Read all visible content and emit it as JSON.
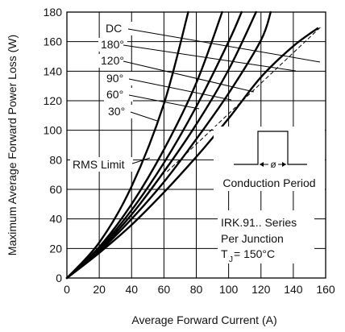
{
  "chart_data": {
    "type": "line",
    "xlabel": "Average Forward Current (A)",
    "ylabel": "Maximum Average Forward Power Loss (W)",
    "xlim": [
      0,
      160
    ],
    "ylim": [
      0,
      180
    ],
    "x_ticks": [
      0,
      20,
      40,
      60,
      80,
      100,
      120,
      140,
      160
    ],
    "y_ticks": [
      0,
      20,
      40,
      60,
      80,
      100,
      120,
      140,
      160,
      180
    ],
    "grid": true,
    "series": [
      {
        "name": "30°",
        "x": [
          0,
          20,
          40,
          60,
          75
        ],
        "y": [
          0,
          24,
          62,
          118,
          180
        ]
      },
      {
        "name": "60°",
        "x": [
          0,
          20,
          40,
          60,
          80,
          96
        ],
        "y": [
          0,
          21,
          50,
          87,
          132,
          180
        ]
      },
      {
        "name": "90°",
        "x": [
          0,
          20,
          40,
          60,
          80,
          100,
          108
        ],
        "y": [
          0,
          20,
          46,
          78,
          116,
          160,
          180
        ]
      },
      {
        "name": "120°",
        "x": [
          0,
          20,
          40,
          60,
          80,
          100,
          117
        ],
        "y": [
          0,
          19,
          43,
          72,
          104,
          141,
          180
        ]
      },
      {
        "name": "180°",
        "x": [
          0,
          20,
          40,
          60,
          80,
          100,
          120,
          126
        ],
        "y": [
          0,
          18,
          40,
          65,
          94,
          125,
          161,
          180
        ]
      },
      {
        "name": "DC",
        "x": [
          0,
          20,
          40,
          60,
          80,
          100,
          120,
          140,
          155
        ],
        "y": [
          0,
          17,
          36,
          58,
          82,
          108,
          136,
          157,
          169
        ]
      }
    ],
    "rms_limit": {
      "label": "RMS Limit",
      "x": [
        62,
        157
      ],
      "y": [
        72,
        170
      ]
    },
    "conduction_period": {
      "label": "Conduction Period",
      "symbol": "ø"
    },
    "annotation_lines": [
      "IRK.91.. Series",
      "Per Junction",
      "T",
      "J",
      " = 150°C"
    ]
  }
}
